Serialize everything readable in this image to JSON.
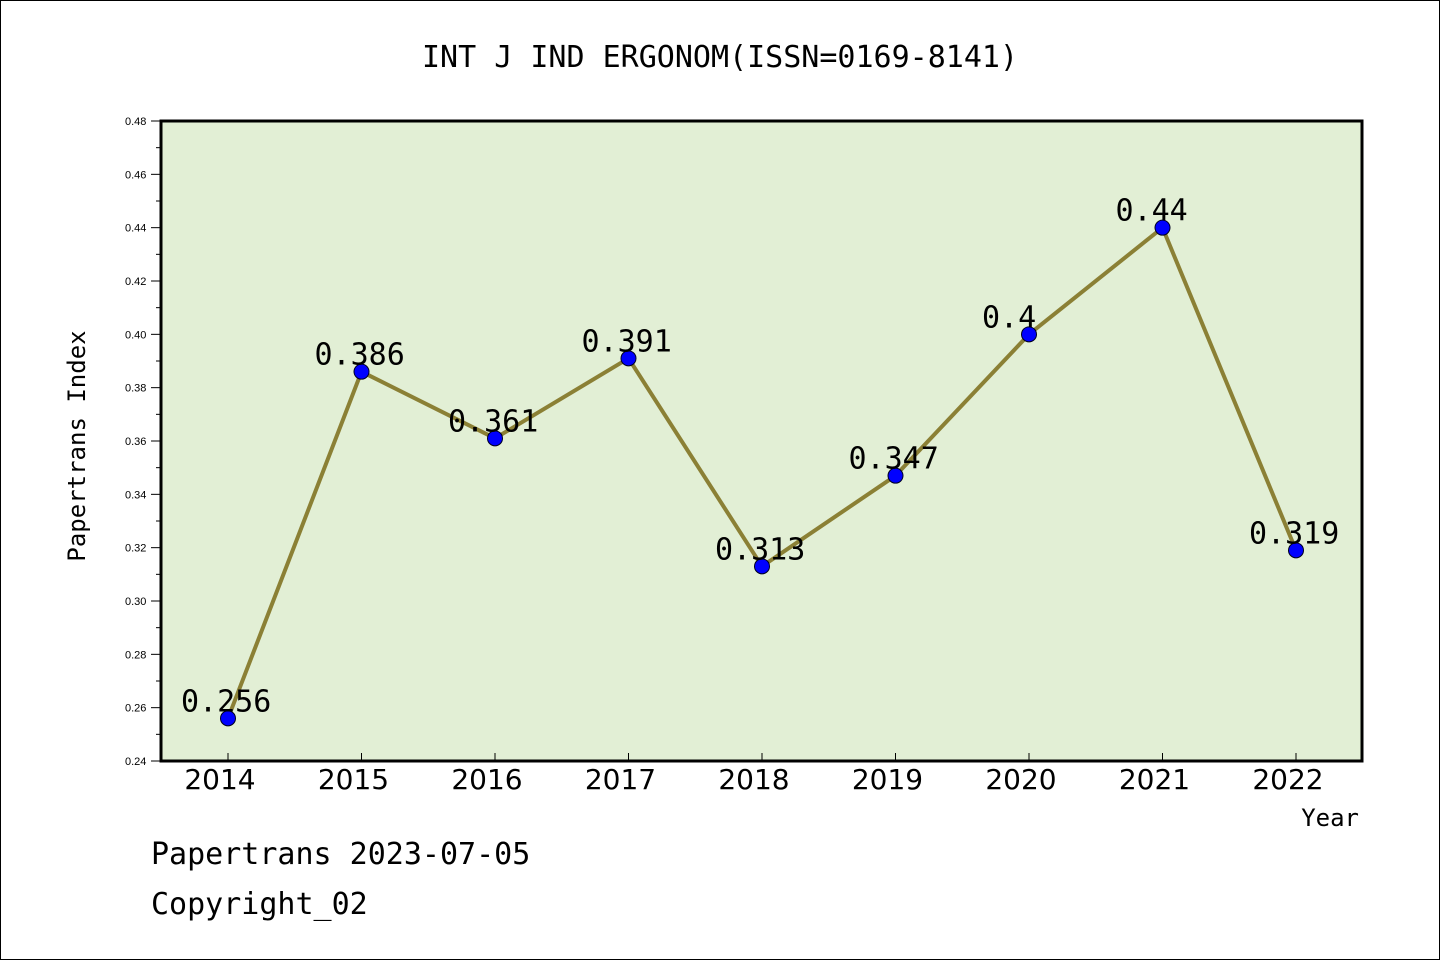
{
  "chart_data": {
    "type": "line",
    "title": "INT J IND ERGONOM(ISSN=0169-8141)",
    "xlabel": "Year",
    "ylabel": "Papertrans Index",
    "categories": [
      "2014",
      "2015",
      "2016",
      "2017",
      "2018",
      "2019",
      "2020",
      "2021",
      "2022"
    ],
    "values": [
      0.256,
      0.386,
      0.361,
      0.391,
      0.313,
      0.347,
      0.4,
      0.44,
      0.319
    ],
    "data_labels": [
      "0.256",
      "0.386",
      "0.361",
      "0.391",
      "0.313",
      "0.347",
      "0.4",
      "0.44",
      "0.319"
    ],
    "ylim": [
      0.24,
      0.48
    ],
    "yticks": [
      "0.24",
      "0.26",
      "0.28",
      "0.30",
      "0.32",
      "0.34",
      "0.36",
      "0.38",
      "0.40",
      "0.42",
      "0.44",
      "0.46",
      "0.48"
    ],
    "grid": false,
    "legend": "none",
    "colors": {
      "plot_background": "#e2efd5",
      "line": "#8b8035",
      "marker": "#0000ff"
    }
  },
  "footer": {
    "line1": "Papertrans 2023-07-05",
    "line2": "Copyright_02"
  }
}
